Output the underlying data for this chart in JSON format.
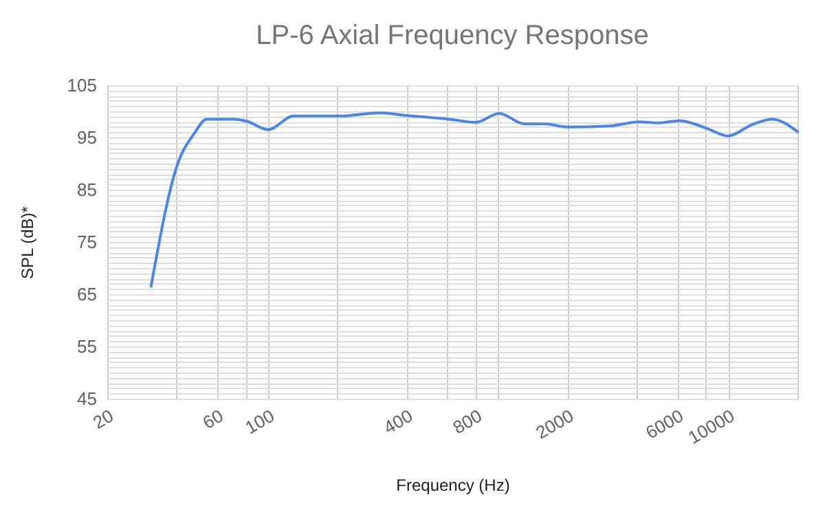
{
  "chart_data": {
    "type": "line",
    "title": "LP-6 Axial Frequency Response",
    "xlabel": "Frequency (Hz)",
    "ylabel": "SPL (dB)*",
    "log": "x",
    "x": [
      31,
      40,
      48,
      54,
      71,
      81,
      100,
      129,
      204,
      308,
      400,
      612,
      800,
      1010,
      1300,
      1600,
      2000,
      3050,
      4100,
      4900,
      6200,
      8000,
      10000,
      12600,
      15500,
      20000
    ],
    "series": [
      {
        "color": "#4a86e8",
        "values": [
          66.5,
          89.3,
          95.9,
          98.5,
          98.5,
          98.1,
          96.5,
          99.1,
          99.1,
          99.7,
          99.2,
          98.5,
          97.9,
          99.6,
          97.6,
          97.6,
          97.0,
          97.2,
          98.0,
          97.8,
          98.2,
          96.8,
          95.3,
          97.4,
          98.5,
          96.1
        ]
      }
    ],
    "xlim": [
      20,
      20000
    ],
    "xticks": [
      20,
      {
        "value": 40,
        "label": null
      },
      60,
      {
        "value": 80,
        "label": null
      },
      100,
      {
        "value": 200,
        "label": null
      },
      400,
      {
        "value": 600,
        "label": null
      },
      800,
      {
        "value": 1000,
        "label": null
      },
      2000,
      {
        "value": 4000,
        "label": null
      },
      6000,
      {
        "value": 8000,
        "label": null
      },
      10000,
      {
        "value": 20000,
        "label": null
      }
    ],
    "ylim": [
      45,
      105
    ],
    "yticks": [
      45,
      {
        "value": 46,
        "label": null
      },
      {
        "value": 47,
        "label": null
      },
      {
        "value": 48,
        "label": null
      },
      {
        "value": 49,
        "label": null
      },
      {
        "value": 50,
        "label": null
      },
      {
        "value": 51,
        "label": null
      },
      {
        "value": 52,
        "label": null
      },
      {
        "value": 53,
        "label": null
      },
      {
        "value": 54,
        "label": null
      },
      55,
      {
        "value": 56,
        "label": null
      },
      {
        "value": 57,
        "label": null
      },
      {
        "value": 58,
        "label": null
      },
      {
        "value": 59,
        "label": null
      },
      {
        "value": 60,
        "label": null
      },
      {
        "value": 61,
        "label": null
      },
      {
        "value": 62,
        "label": null
      },
      {
        "value": 63,
        "label": null
      },
      {
        "value": 64,
        "label": null
      },
      65,
      {
        "value": 66,
        "label": null
      },
      {
        "value": 67,
        "label": null
      },
      {
        "value": 68,
        "label": null
      },
      {
        "value": 69,
        "label": null
      },
      {
        "value": 70,
        "label": null
      },
      {
        "value": 71,
        "label": null
      },
      {
        "value": 72,
        "label": null
      },
      {
        "value": 73,
        "label": null
      },
      {
        "value": 74,
        "label": null
      },
      75,
      {
        "value": 76,
        "label": null
      },
      {
        "value": 77,
        "label": null
      },
      {
        "value": 78,
        "label": null
      },
      {
        "value": 79,
        "label": null
      },
      {
        "value": 80,
        "label": null
      },
      {
        "value": 81,
        "label": null
      },
      {
        "value": 82,
        "label": null
      },
      {
        "value": 83,
        "label": null
      },
      {
        "value": 84,
        "label": null
      },
      85,
      {
        "value": 86,
        "label": null
      },
      {
        "value": 87,
        "label": null
      },
      {
        "value": 88,
        "label": null
      },
      {
        "value": 89,
        "label": null
      },
      {
        "value": 90,
        "label": null
      },
      {
        "value": 91,
        "label": null
      },
      {
        "value": 92,
        "label": null
      },
      {
        "value": 93,
        "label": null
      },
      {
        "value": 94,
        "label": null
      },
      95,
      {
        "value": 96,
        "label": null
      },
      {
        "value": 97,
        "label": null
      },
      {
        "value": 98,
        "label": null
      },
      {
        "value": 99,
        "label": null
      },
      {
        "value": 100,
        "label": null
      },
      {
        "value": 101,
        "label": null
      },
      {
        "value": 102,
        "label": null
      },
      {
        "value": 103,
        "label": null
      },
      {
        "value": 104,
        "label": null
      },
      105
    ],
    "grid": true,
    "legend": false,
    "marker": "none",
    "line_style": "solid"
  }
}
